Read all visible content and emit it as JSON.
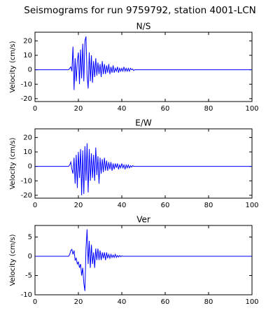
{
  "title": "Seismograms for run 9759792, station 4001-LCN",
  "chart_data": [
    {
      "type": "line",
      "title": "N/S",
      "ylabel": "Velocity (cm/s)",
      "x": [
        0,
        15,
        15.5,
        16,
        16.5,
        17,
        17.5,
        18,
        18.5,
        19,
        19.5,
        20,
        20.5,
        21,
        21.5,
        22,
        22.5,
        23,
        23.5,
        24,
        24.5,
        25,
        25.5,
        26,
        26.5,
        27,
        27.5,
        28,
        28.5,
        29,
        29.5,
        30,
        30.5,
        31,
        31.5,
        32,
        32.5,
        33,
        33.5,
        34,
        34.5,
        35,
        35.5,
        36,
        36.5,
        37,
        37.5,
        38,
        38.5,
        39,
        39.5,
        40,
        40.5,
        41,
        41.5,
        42,
        42.5,
        43,
        43.5,
        44,
        44.5,
        45,
        45.5,
        46,
        46.5,
        47,
        100
      ],
      "values": [
        0,
        0,
        0,
        1,
        2,
        -1,
        16,
        -14,
        8,
        -8,
        6,
        12,
        -10,
        14,
        -6,
        18,
        -8,
        20,
        23,
        -4,
        -13,
        12,
        -8,
        10,
        -9,
        6,
        -5,
        8,
        -4,
        5,
        -3,
        4,
        -5,
        6,
        -3,
        4,
        -3,
        3,
        -2,
        4,
        -3,
        2,
        -2,
        3,
        -2,
        1,
        -1,
        2,
        -2,
        1,
        -1,
        1,
        -1,
        2,
        -1,
        1,
        -1,
        1,
        -1,
        1,
        0,
        0.5,
        -0.5,
        0,
        0,
        0,
        0
      ],
      "color": "#0000ff",
      "xlim": [
        0,
        100
      ],
      "ylim": [
        -22,
        26
      ],
      "xticks": [
        0,
        20,
        40,
        60,
        80,
        100
      ],
      "yticks": [
        -20,
        -10,
        0,
        10,
        20
      ]
    },
    {
      "type": "line",
      "title": "E/W",
      "ylabel": "Velocity (cm/s)",
      "x": [
        0,
        15,
        15.5,
        16,
        16.5,
        17,
        17.5,
        18,
        18.5,
        19,
        19.5,
        20,
        20.5,
        21,
        21.5,
        22,
        22.5,
        23,
        23.5,
        24,
        24.5,
        25,
        25.5,
        26,
        26.5,
        27,
        27.5,
        28,
        28.5,
        29,
        29.5,
        30,
        30.5,
        31,
        31.5,
        32,
        32.5,
        33,
        33.5,
        34,
        34.5,
        35,
        35.5,
        36,
        36.5,
        37,
        37.5,
        38,
        38.5,
        39,
        39.5,
        40,
        40.5,
        41,
        41.5,
        42,
        42.5,
        43,
        43.5,
        44,
        44.5,
        45,
        45.5,
        46,
        46.5,
        47,
        100
      ],
      "values": [
        0,
        0,
        0,
        1,
        3,
        -2,
        -5,
        6,
        -12,
        8,
        -15,
        10,
        -8,
        12,
        -20,
        11,
        -19,
        14,
        -10,
        16,
        -18,
        12,
        -10,
        9,
        -8,
        8,
        -10,
        13,
        -6,
        7,
        -12,
        6,
        -5,
        5,
        -4,
        6,
        -3,
        4,
        -3,
        3,
        -2,
        3,
        -3,
        2,
        -2,
        2,
        -1,
        2,
        -2,
        1,
        -1,
        2,
        -1,
        1,
        -2,
        1,
        -1,
        1,
        -1,
        0.5,
        -0.5,
        0.5,
        0,
        0,
        0,
        0,
        0
      ],
      "color": "#0000ff",
      "xlim": [
        0,
        100
      ],
      "ylim": [
        -22,
        26
      ],
      "xticks": [
        0,
        20,
        40,
        60,
        80,
        100
      ],
      "yticks": [
        -20,
        -10,
        0,
        10,
        20
      ]
    },
    {
      "type": "line",
      "title": "Ver",
      "ylabel": "Velocity (cm/s)",
      "x": [
        0,
        15,
        15.5,
        16,
        16.5,
        17,
        17.5,
        18,
        18.5,
        19,
        19.5,
        20,
        20.5,
        21,
        21.5,
        22,
        22.5,
        23,
        23.5,
        24,
        24.5,
        25,
        25.5,
        26,
        26.5,
        27,
        27.5,
        28,
        28.5,
        29,
        29.5,
        30,
        30.5,
        31,
        31.5,
        32,
        32.5,
        33,
        33.5,
        34,
        34.5,
        35,
        35.5,
        36,
        36.5,
        37,
        37.5,
        38,
        38.5,
        39,
        39.5,
        40,
        40.5,
        41,
        41.5,
        42,
        42.5,
        43,
        43.5,
        44,
        44.5,
        45,
        45.5,
        46,
        46.5,
        47,
        100
      ],
      "values": [
        0,
        0,
        0,
        0.5,
        1.5,
        1.8,
        0.5,
        1.5,
        -1,
        -0.5,
        -2,
        -1.5,
        -3,
        -2,
        -5,
        -3,
        -7,
        -9,
        2,
        7,
        -2,
        4,
        -3,
        3,
        -2,
        1,
        -3,
        2,
        -1,
        2,
        -1,
        1.5,
        -1,
        1,
        -0.5,
        1,
        -1,
        1,
        -0.5,
        0.5,
        -0.5,
        0.5,
        -0.3,
        0.3,
        -0.3,
        0.5,
        -0.3,
        0.2,
        -0.2,
        0.2,
        -0.1,
        0.1,
        0,
        0,
        0,
        0,
        0,
        0,
        0,
        0,
        0,
        0,
        0,
        0,
        0,
        0,
        0
      ],
      "color": "#0000ff",
      "xlim": [
        0,
        100
      ],
      "ylim": [
        -10,
        8
      ],
      "xticks": [
        0,
        20,
        40,
        60,
        80,
        100
      ],
      "yticks": [
        -10,
        -5,
        0,
        5
      ]
    }
  ]
}
